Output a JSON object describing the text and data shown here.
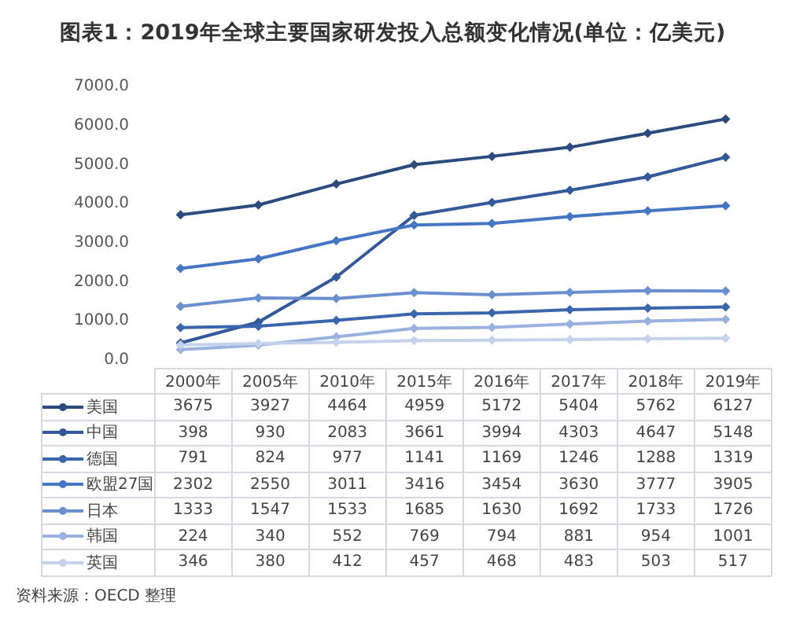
{
  "chart_data": {
    "type": "line",
    "title": "图表1：2019年全球主要国家研发投入总额变化情况(单位：亿美元)",
    "categories": [
      "2000年",
      "2005年",
      "2010年",
      "2015年",
      "2016年",
      "2017年",
      "2018年",
      "2019年"
    ],
    "series": [
      {
        "name": "美国",
        "color": "#2b4a7e",
        "values": [
          3675,
          3927,
          4464,
          4959,
          5172,
          5404,
          5762,
          6127
        ]
      },
      {
        "name": "中国",
        "color": "#33599a",
        "values": [
          398,
          930,
          2083,
          3661,
          3994,
          4303,
          4647,
          5148
        ]
      },
      {
        "name": "德国",
        "color": "#3a66ad",
        "values": [
          791,
          824,
          977,
          1141,
          1169,
          1246,
          1288,
          1319
        ]
      },
      {
        "name": "欧盟27国",
        "color": "#4576c4",
        "values": [
          2302,
          2550,
          3011,
          3416,
          3454,
          3630,
          3777,
          3905
        ]
      },
      {
        "name": "日本",
        "color": "#6b90cf",
        "values": [
          1333,
          1547,
          1533,
          1685,
          1630,
          1692,
          1733,
          1726
        ]
      },
      {
        "name": "韩国",
        "color": "#98b1de",
        "values": [
          224,
          340,
          552,
          769,
          794,
          881,
          954,
          1001
        ]
      },
      {
        "name": "英国",
        "color": "#c4d2ec",
        "values": [
          346,
          380,
          412,
          457,
          468,
          483,
          503,
          517
        ]
      }
    ],
    "ylim": [
      0,
      7000
    ],
    "yticks": [
      {
        "value": 0,
        "label": "0.0"
      },
      {
        "value": 1000,
        "label": "1000.0"
      },
      {
        "value": 2000,
        "label": "2000.0"
      },
      {
        "value": 3000,
        "label": "3000.0"
      },
      {
        "value": 4000,
        "label": "4000.0"
      },
      {
        "value": 5000,
        "label": "5000.0"
      },
      {
        "value": 6000,
        "label": "6000.0"
      },
      {
        "value": 7000,
        "label": "7000.0"
      }
    ],
    "grid": false,
    "legend": "bottom",
    "marker": "diamond",
    "data_labels": true,
    "annotations": [
      "资料来源：OECD 整理"
    ]
  }
}
